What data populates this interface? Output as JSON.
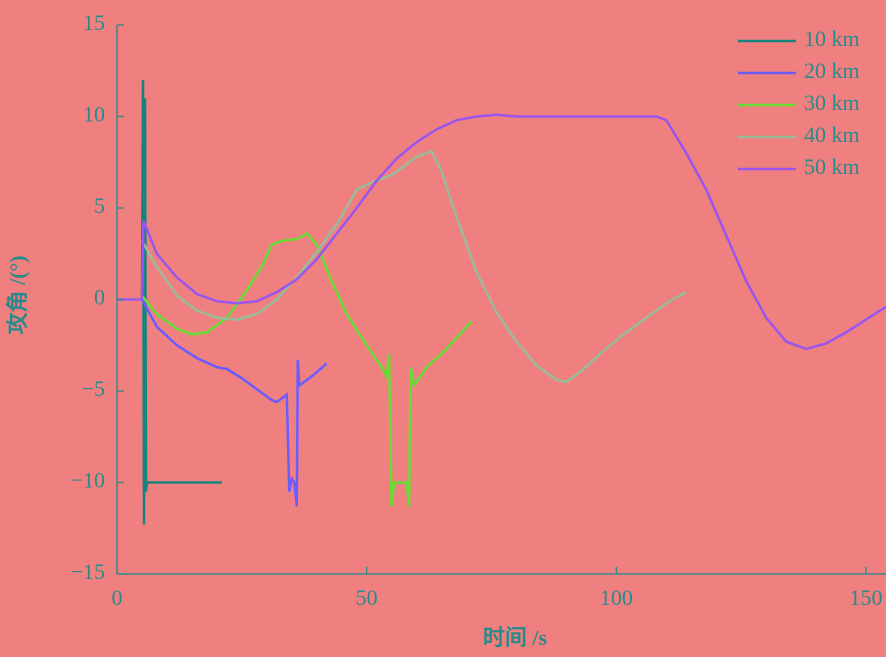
{
  "chart_data": {
    "type": "line",
    "x_label": "时间 /s",
    "y_label": "攻角 /(°)",
    "xlim": [
      0,
      154
    ],
    "ylim": [
      -15,
      15
    ],
    "xticks": [
      0,
      50,
      100,
      150
    ],
    "yticks": [
      {
        "value": -15,
        "label": "−15"
      },
      {
        "value": -10,
        "label": "−10"
      },
      {
        "value": -5,
        "label": "−5"
      },
      0,
      5,
      10,
      15
    ],
    "legend": "upper right",
    "series": [
      {
        "name": "10 km",
        "color": "#16847e",
        "x": [
          5,
          5.2,
          5.4,
          5.6,
          5.8,
          6,
          21
        ],
        "values": [
          0,
          12,
          -12.3,
          11,
          -10.5,
          -10,
          -10
        ]
      },
      {
        "name": "20 km",
        "color": "#6a5cff",
        "x": [
          5,
          8,
          12,
          16,
          20,
          22,
          25,
          28,
          31,
          32,
          34,
          34.5,
          35,
          35.5,
          36,
          36.2,
          36.5,
          39,
          42
        ],
        "values": [
          0,
          -1.5,
          -2.5,
          -3.2,
          -3.7,
          -3.8,
          -4.3,
          -4.9,
          -5.5,
          -5.6,
          -5.2,
          -10.5,
          -9.8,
          -10,
          -11.3,
          -3.3,
          -4.7,
          -4.2,
          -3.5
        ]
      },
      {
        "name": "30 km",
        "color": "#66dd33",
        "x": [
          5,
          8,
          12,
          15,
          18,
          22,
          26,
          29,
          31,
          33,
          36,
          38,
          40,
          43,
          46,
          50,
          53,
          54,
          54.5,
          55,
          55.5,
          58,
          58.5,
          58.8,
          59.5,
          62,
          66,
          71
        ],
        "values": [
          0.2,
          -0.8,
          -1.6,
          -1.9,
          -1.8,
          -1,
          0.5,
          1.8,
          3,
          3.2,
          3.3,
          3.6,
          3,
          1,
          -0.8,
          -2.5,
          -3.7,
          -4.2,
          -3,
          -11.3,
          -10,
          -10,
          -11.3,
          -3.7,
          -4.7,
          -3.7,
          -2.7,
          -1.2
        ]
      },
      {
        "name": "40 km",
        "color": "#99bb99",
        "x": [
          5,
          8,
          12,
          16,
          20,
          24,
          28,
          32,
          36,
          40,
          44,
          48,
          51,
          55,
          60,
          63,
          65,
          68,
          72,
          76,
          80,
          84,
          88,
          90,
          93,
          97,
          101,
          106,
          110,
          114
        ],
        "values": [
          3.2,
          1.8,
          0.2,
          -0.6,
          -1,
          -1.1,
          -0.8,
          0,
          1.2,
          2.6,
          4.1,
          6,
          6.4,
          6.8,
          7.8,
          8.1,
          7,
          4.5,
          1.5,
          -0.7,
          -2.3,
          -3.6,
          -4.4,
          -4.5,
          -3.9,
          -2.9,
          -2,
          -1,
          -0.2,
          0.4
        ]
      },
      {
        "name": "50 km",
        "color": "#9955ee",
        "x": [
          0,
          5,
          5.3,
          8,
          12,
          16,
          20,
          24,
          28,
          32,
          36,
          40,
          44,
          48,
          52,
          56,
          60,
          64,
          68,
          72,
          76,
          80,
          90,
          100,
          108,
          110,
          114,
          118,
          122,
          126,
          130,
          134,
          138,
          142,
          146,
          150,
          154
        ],
        "values": [
          0,
          0,
          4.3,
          2.5,
          1.2,
          0.3,
          -0.1,
          -0.2,
          -0.1,
          0.4,
          1.1,
          2.2,
          3.6,
          5,
          6.5,
          7.7,
          8.6,
          9.3,
          9.8,
          10,
          10.1,
          10,
          10,
          10,
          10,
          9.8,
          8,
          6,
          3.5,
          1,
          -1,
          -2.3,
          -2.7,
          -2.4,
          -1.8,
          -1.1,
          -0.4
        ]
      }
    ]
  }
}
